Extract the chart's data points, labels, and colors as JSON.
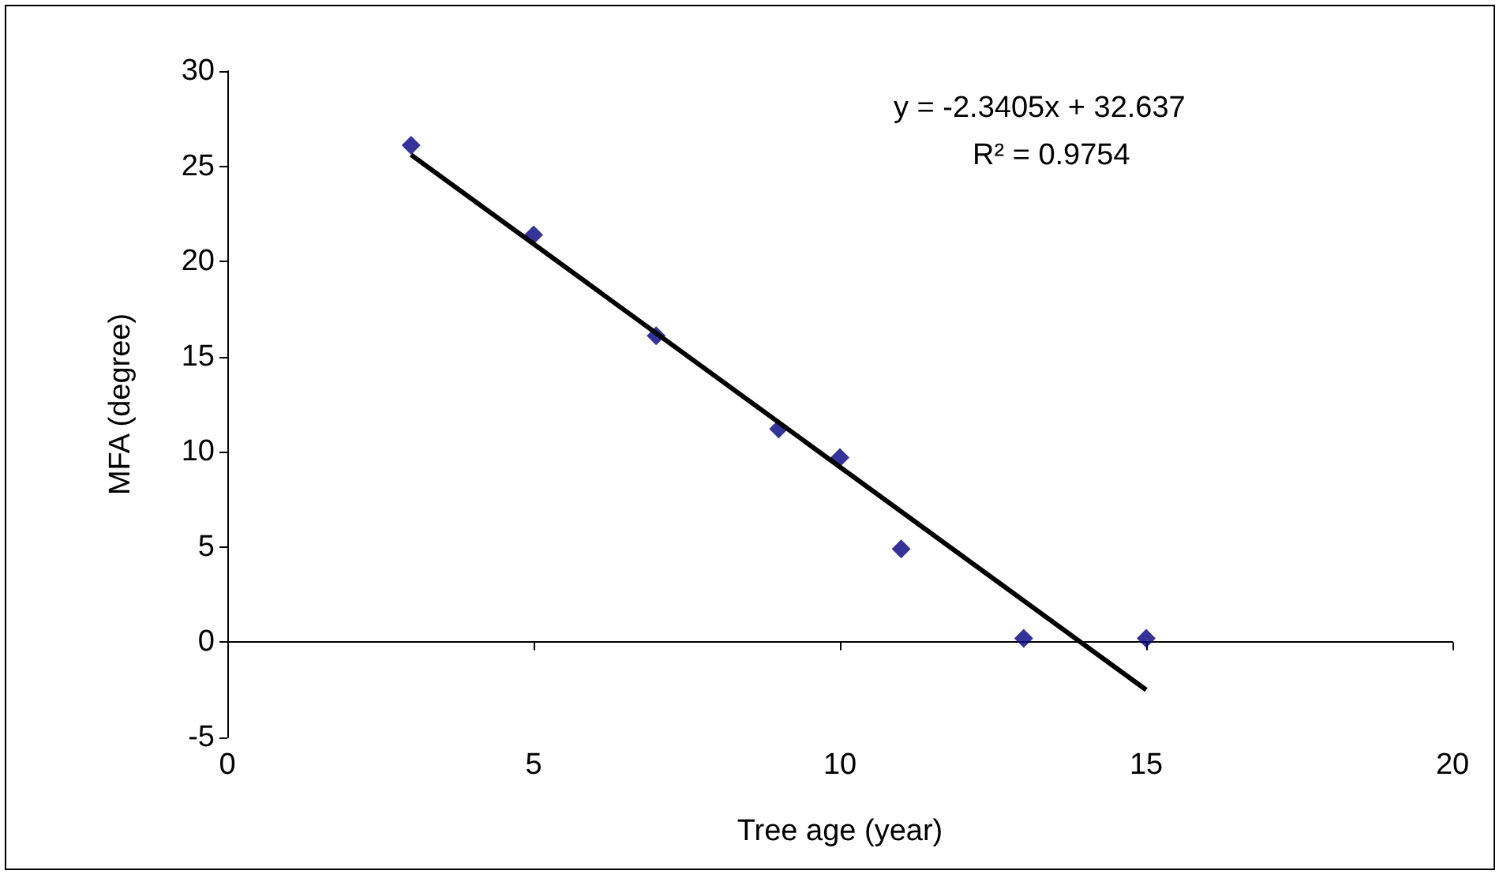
{
  "chart_data": {
    "type": "scatter",
    "xlabel": "Tree age (year)",
    "ylabel": "MFA (degree)",
    "annotations": [
      "y = -2.3405x + 32.637",
      "R² = 0.9754"
    ],
    "series": [
      {
        "color": "#000080",
        "marker": "diamond",
        "x": [
          3,
          5,
          7,
          9,
          10,
          11,
          13,
          15
        ],
        "values": [
          26.1,
          21.4,
          16.1,
          11.2,
          9.7,
          4.9,
          0.2,
          0.2
        ]
      },
      {
        "type": "line",
        "color": "#000000",
        "marker": "none",
        "line_style": "solid",
        "x": [
          3,
          15
        ],
        "values": [
          25.6,
          -2.5
        ]
      }
    ],
    "xlim": [
      0,
      20
    ],
    "xticks": [
      0,
      5,
      10,
      15,
      20
    ],
    "ylim": [
      -5,
      30
    ],
    "yticks": [
      -5,
      0,
      5,
      10,
      15,
      20,
      25,
      30
    ]
  }
}
